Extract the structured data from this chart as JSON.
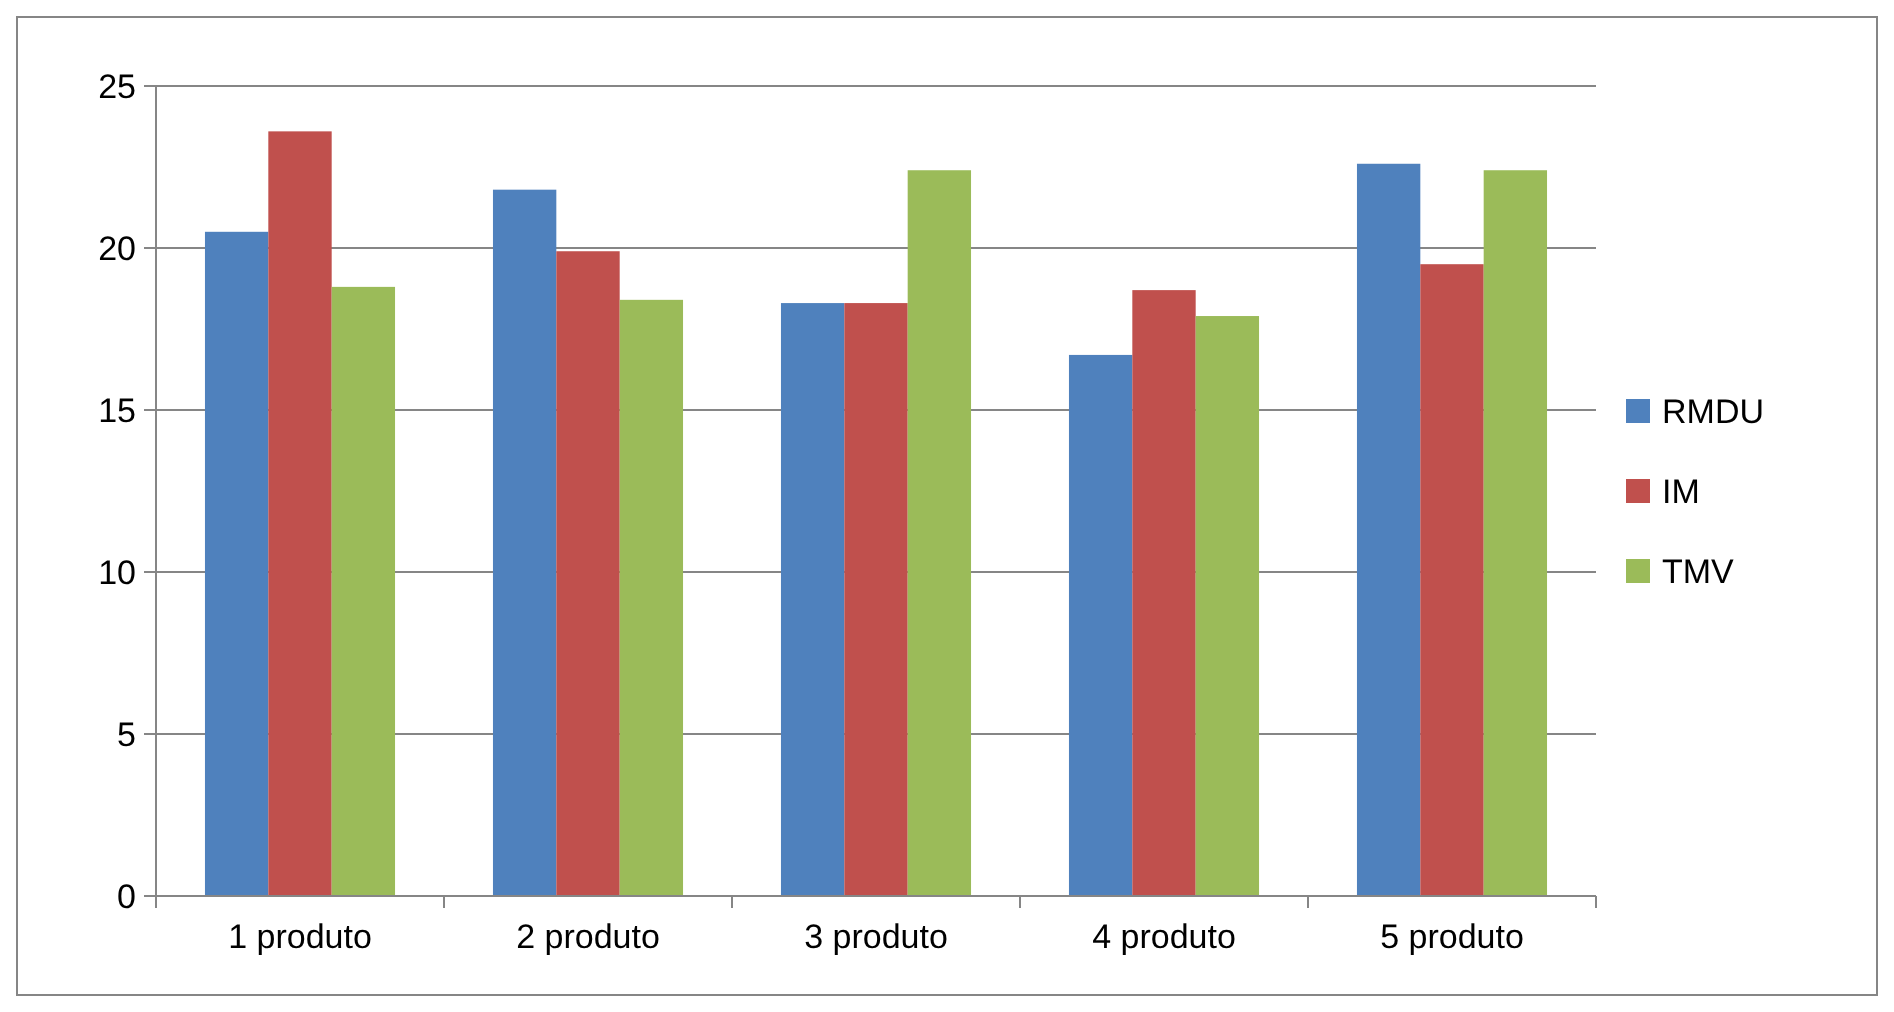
{
  "chart_data": {
    "type": "bar",
    "categories": [
      "1 produto",
      "2 produto",
      "3 produto",
      "4 produto",
      "5 produto"
    ],
    "series": [
      {
        "name": "RMDU",
        "color": "#4f81bd",
        "values": [
          20.5,
          21.8,
          18.3,
          16.7,
          22.6
        ]
      },
      {
        "name": "IM",
        "color": "#c0504d",
        "values": [
          23.6,
          19.9,
          18.3,
          18.7,
          19.5
        ]
      },
      {
        "name": "TMV",
        "color": "#9bbb59",
        "values": [
          18.8,
          18.4,
          22.4,
          17.9,
          22.4
        ]
      }
    ],
    "ylim": [
      0,
      25
    ],
    "yticks": [
      0,
      5,
      10,
      15,
      20,
      25
    ],
    "grid": "y",
    "legend": "right"
  }
}
